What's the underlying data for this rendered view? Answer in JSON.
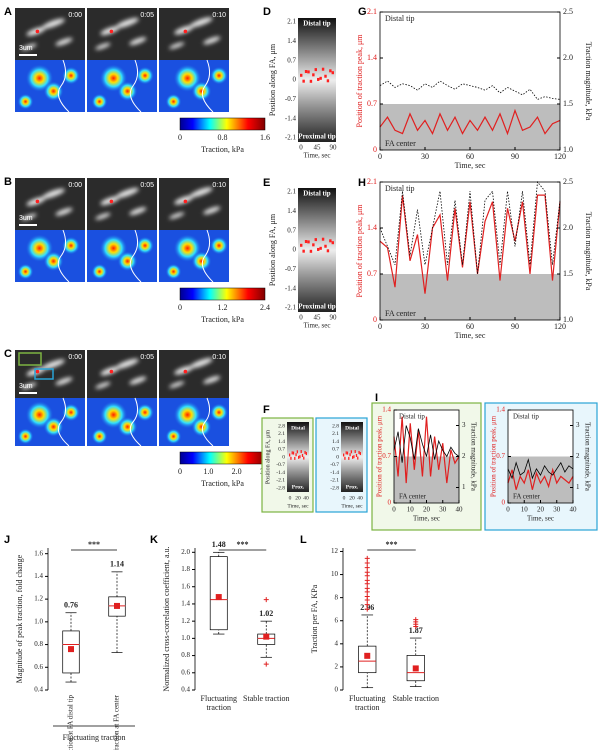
{
  "panels": {
    "A": {
      "label": "A",
      "times": [
        "0:00",
        "0:05",
        "0:10"
      ],
      "scale": "3um",
      "colorbar": {
        "ticks": [
          "0",
          "0.8",
          "1.6"
        ],
        "label": "Traction, kPa"
      }
    },
    "B": {
      "label": "B",
      "times": [
        "0:00",
        "0:05",
        "0:10"
      ],
      "scale": "3um",
      "colorbar": {
        "ticks": [
          "0",
          "1.2",
          "2.4"
        ],
        "label": "Traction, kPa"
      }
    },
    "C": {
      "label": "C",
      "times": [
        "0:00",
        "0:05",
        "0:10"
      ],
      "scale": "3um",
      "colorbar": {
        "ticks": [
          "0",
          "1.0",
          "2.0",
          "3.0"
        ],
        "label": "Traction, kPa"
      }
    },
    "D": {
      "label": "D",
      "top": "Distal tip",
      "bottom": "Proximal tip",
      "yticks": [
        "2.1",
        "1.4",
        "0.7",
        "0",
        "-0.7",
        "-1.4",
        "-2.1"
      ],
      "xticks": [
        "0",
        "45",
        "90"
      ],
      "xlabel": "Time, sec",
      "ylabel": "Position along FA, μm"
    },
    "E": {
      "label": "E",
      "top": "Distal tip",
      "bottom": "Proximal tip",
      "yticks": [
        "2.1",
        "1.4",
        "0.7",
        "0",
        "-0.7",
        "-1.4",
        "-2.1"
      ],
      "xticks": [
        "0",
        "45",
        "90"
      ],
      "xlabel": "Time, sec",
      "ylabel": "Position along FA, μm"
    },
    "F": {
      "label": "F",
      "top": "Distal",
      "bottom": "Prox.",
      "yticks": [
        "2.8",
        "2.1",
        "1.4",
        "0.7",
        "0",
        "-0.7",
        "-1.4",
        "-2.1",
        "-2.8"
      ],
      "xticks": [
        "0",
        "20",
        "40"
      ],
      "xlabel": "Time, sec",
      "ylabel": "Position along FA, μm"
    }
  },
  "chart_data": [
    {
      "type": "line",
      "panel_label": "G",
      "top_label": "Distal tip",
      "bottom_label": "FA center",
      "xlabel": "Time, sec",
      "ylabel": "Position of traction peak, μm",
      "y2label": "Traction magnitude, kPa",
      "x": [
        0,
        5,
        10,
        15,
        20,
        25,
        30,
        35,
        40,
        45,
        50,
        55,
        60,
        65,
        70,
        75,
        80,
        85,
        90,
        95,
        100,
        105,
        110,
        115,
        120
      ],
      "series": [
        {
          "color": "#e02020",
          "values": [
            0.35,
            0.5,
            0.3,
            0.25,
            0.55,
            0.3,
            0.45,
            0.25,
            0.55,
            0.3,
            0.5,
            0.25,
            0.45,
            0.3,
            0.5,
            0.3,
            0.55,
            0.25,
            0.6,
            0.3,
            0.35,
            0.5,
            0.25,
            0.4,
            0.45
          ]
        },
        {
          "color": "#000000",
          "axis": "y2",
          "line_style": "dotted",
          "values": [
            1.7,
            1.75,
            1.68,
            1.72,
            1.7,
            1.65,
            1.72,
            1.68,
            1.75,
            1.7,
            1.66,
            1.72,
            1.7,
            1.68,
            1.65,
            1.7,
            1.62,
            1.68,
            1.64,
            1.6,
            1.66,
            1.55,
            1.58,
            1.56,
            1.55
          ]
        }
      ],
      "xlim": [
        0,
        120
      ],
      "xticks": [
        0,
        30,
        60,
        90,
        120
      ],
      "ylim": [
        0,
        2.1
      ],
      "yticks": [
        0,
        0.7,
        1.4,
        2.1
      ],
      "y2lim": [
        1,
        2.5
      ],
      "y2ticks": [
        {
          "value": 1,
          "label": "1.0"
        },
        1.5,
        {
          "value": 2,
          "label": "2.0"
        },
        2.5
      ],
      "shaded_range": [
        0,
        0.7
      ]
    },
    {
      "type": "line",
      "panel_label": "H",
      "top_label": "Distal tip",
      "bottom_label": "FA center",
      "xlabel": "Time, sec",
      "ylabel": "Position of traction peak, μm",
      "y2label": "Traction magnitude, kPa",
      "x": [
        0,
        5,
        10,
        15,
        20,
        25,
        30,
        35,
        40,
        45,
        50,
        55,
        60,
        65,
        70,
        75,
        80,
        85,
        90,
        95,
        100,
        105,
        110,
        115,
        120
      ],
      "series": [
        {
          "color": "#e02020",
          "values": [
            1.2,
            1.1,
            0.5,
            1.9,
            0.9,
            1.3,
            0.4,
            1.4,
            1.6,
            0.6,
            1.7,
            0.8,
            1.8,
            0.7,
            1.5,
            1.8,
            0.6,
            1.7,
            1.2,
            1.8,
            0.7,
            1.9,
            1.9,
            0.6,
            1.8
          ]
        },
        {
          "color": "#000000",
          "axis": "y2",
          "line_style": "dotted",
          "values": [
            2.0,
            1.8,
            1.6,
            2.4,
            1.7,
            2.2,
            1.6,
            2.0,
            2.4,
            1.6,
            2.3,
            1.6,
            2.4,
            1.5,
            2.3,
            2.4,
            1.6,
            2.4,
            1.8,
            2.4,
            1.6,
            2.5,
            2.4,
            1.6,
            2.3
          ]
        }
      ],
      "xlim": [
        0,
        120
      ],
      "xticks": [
        0,
        30,
        60,
        90,
        120
      ],
      "ylim": [
        0,
        2.1
      ],
      "yticks": [
        0,
        0.7,
        1.4,
        2.1
      ],
      "y2lim": [
        1,
        2.5
      ],
      "y2ticks": [
        {
          "value": 1,
          "label": "1.0"
        },
        1.5,
        {
          "value": 2,
          "label": "2.0"
        },
        2.5
      ],
      "shaded_range": [
        0,
        0.7
      ]
    },
    {
      "type": "line",
      "panel_label": "I",
      "top_label": "Distal tip",
      "bottom_label": "FA center",
      "xlabel": "Time, sec",
      "ylabel": "Position of traction peak, μm",
      "y2label": "Traction magnitude, kPa",
      "x": [
        0,
        2.5,
        5,
        7.5,
        10,
        12.5,
        15,
        17.5,
        20,
        22.5,
        25,
        27.5,
        30,
        32.5,
        35,
        37.5,
        40
      ],
      "series": [
        {
          "color": "#e02020",
          "values": [
            1.0,
            0.4,
            1.3,
            0.3,
            1.2,
            0.5,
            1.1,
            0.4,
            1.3,
            0.4,
            1.0,
            0.5,
            0.9,
            0.3,
            0.8,
            0.6,
            0.7
          ]
        },
        {
          "color": "#000000",
          "axis": "y2",
          "values": [
            2.2,
            2.8,
            1.8,
            3.0,
            2.6,
            1.9,
            2.9,
            2.4,
            2.0,
            2.7,
            1.9,
            2.5,
            2.2,
            2.0,
            2.3,
            2.1,
            2.0
          ]
        }
      ],
      "xlim": [
        0,
        40
      ],
      "xticks": [
        0,
        10,
        20,
        30,
        40
      ],
      "ylim": [
        0,
        1.4
      ],
      "yticks": [
        0,
        0.7,
        1.4
      ],
      "y2lim": [
        0.5,
        3.5
      ],
      "y2ticks": [
        1,
        2,
        3
      ],
      "shaded_range": [
        0,
        0.7
      ]
    },
    {
      "type": "line",
      "top_label": "Distal tip",
      "bottom_label": "FA center",
      "xlabel": "Time, sec",
      "ylabel": "Position of traction peak, μm",
      "y2label": "Traction magnitude, kPa",
      "x": [
        0,
        2.5,
        5,
        7.5,
        10,
        12.5,
        15,
        17.5,
        20,
        22.5,
        25,
        27.5,
        30,
        32.5,
        35,
        37.5,
        40
      ],
      "series": [
        {
          "color": "#e02020",
          "values": [
            0.3,
            0.5,
            0.2,
            0.4,
            0.3,
            0.5,
            0.2,
            0.45,
            0.3,
            0.4,
            0.25,
            0.5,
            0.3,
            0.4,
            0.35,
            0.3,
            0.4
          ]
        },
        {
          "color": "#000000",
          "axis": "y2",
          "values": [
            1.6,
            1.3,
            1.8,
            1.4,
            1.5,
            1.9,
            1.3,
            1.6,
            1.4,
            1.7,
            1.5,
            1.4,
            1.6,
            1.8,
            1.5,
            1.7,
            1.6
          ]
        }
      ],
      "xlim": [
        0,
        40
      ],
      "xticks": [
        0,
        10,
        20,
        30,
        40
      ],
      "ylim": [
        0,
        1.4
      ],
      "yticks": [
        0,
        0.7,
        1.4
      ],
      "y2lim": [
        0.5,
        3.5
      ],
      "y2ticks": [
        1,
        2,
        3
      ],
      "shaded_range": [
        0,
        0.7
      ]
    },
    {
      "type": "box",
      "panel_label": "J",
      "ylabel": "Magnitude of peak traction, fold change",
      "categories": [
        "Traction at FA distal tip",
        "Traction at FA center"
      ],
      "group_label": "Fluctuating traction",
      "annotation": "***",
      "boxes": [
        {
          "min": 0.47,
          "q1": 0.55,
          "median": 0.8,
          "q3": 0.92,
          "max": 1.08,
          "mean": 0.76,
          "outliers": []
        },
        {
          "min": 0.73,
          "q1": 1.05,
          "median": 1.14,
          "q3": 1.22,
          "max": 1.44,
          "mean": 1.14,
          "outliers": []
        }
      ],
      "ylim": [
        0.4,
        1.65
      ],
      "yticks": [
        0.4,
        0.6,
        0.8,
        {
          "value": 1,
          "label": "1.0"
        },
        1.2,
        1.4,
        1.6
      ]
    },
    {
      "type": "box",
      "panel_label": "K",
      "ylabel": "Normalized cross-correlation coefficient, a.u.",
      "categories": [
        "Fluctuating traction",
        "Stable traction"
      ],
      "annotation": "***",
      "boxes": [
        {
          "min": 1.05,
          "q1": 1.1,
          "median": 1.45,
          "q3": 1.95,
          "max": 2.0,
          "mean": 1.48,
          "outliers": []
        },
        {
          "min": 0.78,
          "q1": 0.93,
          "median": 1.0,
          "q3": 1.05,
          "max": 1.2,
          "mean": 1.02,
          "outliers": [
            1.45,
            0.7
          ]
        }
      ],
      "ylim": [
        0.4,
        2.05
      ],
      "yticks": [
        0.4,
        0.6,
        0.8,
        {
          "value": 1,
          "label": "1.0"
        },
        1.2,
        1.4,
        1.6,
        1.8,
        {
          "value": 2,
          "label": "2.0"
        }
      ]
    },
    {
      "type": "box",
      "panel_label": "L",
      "ylabel": "Traction per FA, KPa",
      "categories": [
        "Fluctuating traction",
        "Stable traction"
      ],
      "annotation": "***",
      "boxes": [
        {
          "min": 0.2,
          "q1": 1.5,
          "median": 2.5,
          "q3": 3.8,
          "max": 6.5,
          "mean": 2.96,
          "outliers": [
            7.0,
            7.4,
            7.8,
            8.1,
            8.5,
            8.8,
            9.2,
            9.5,
            9.9,
            10.2,
            10.6,
            11.0,
            11.4
          ]
        },
        {
          "min": 0.3,
          "q1": 0.8,
          "median": 1.5,
          "q3": 3.0,
          "max": 4.5,
          "mean": 1.87,
          "outliers": [
            5.5,
            5.7,
            5.9,
            6.1
          ]
        }
      ],
      "ylim": [
        0,
        12.3
      ],
      "yticks": [
        0,
        2,
        4,
        6,
        8,
        10,
        12
      ]
    }
  ]
}
